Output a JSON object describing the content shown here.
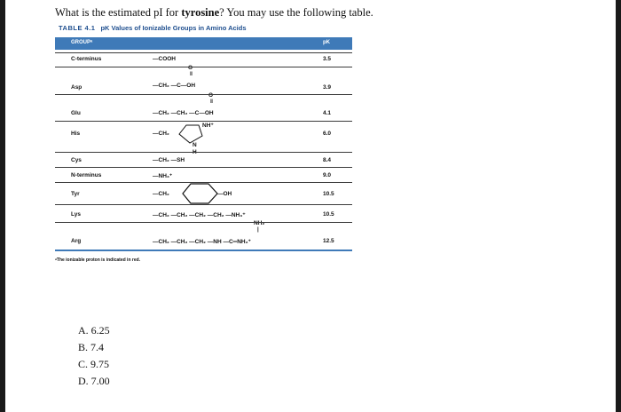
{
  "question": {
    "prefix": "What is the estimated pI for ",
    "bold": "tyrosine",
    "suffix": "? You may use the following table."
  },
  "table": {
    "number": "TABLE 4.1",
    "caption": "pK Values of Ionizable Groups in Amino Acids",
    "header_group": "GROUPᵃ",
    "header_pk": "pK",
    "rows": [
      {
        "name": "C-terminus",
        "pk": "3.5",
        "structure": "—COOH"
      },
      {
        "name": "Asp",
        "pk": "3.9",
        "structure": "—CH₂ —C—OH"
      },
      {
        "name": "Glu",
        "pk": "4.1",
        "structure": "—CH₂ —CH₂ —C—OH"
      },
      {
        "name": "His",
        "pk": "6.0",
        "structure": "—CH₂"
      },
      {
        "name": "Cys",
        "pk": "8.4",
        "structure": "—CH₂ —SH"
      },
      {
        "name": "N-terminus",
        "pk": "9.0",
        "structure": "—NH₃⁺"
      },
      {
        "name": "Tyr",
        "pk": "10.5",
        "structure": "—CH₂"
      },
      {
        "name": "Lys",
        "pk": "10.5",
        "structure": "—CH₂ —CH₂ —CH₂ —CH₂ —NH₃⁺"
      },
      {
        "name": "Arg",
        "pk": "12.5",
        "structure": "—CH₂ —CH₂ —CH₂ —NH —C═NH₂⁺"
      }
    ],
    "labels": {
      "o": "O",
      "nh_plus": "NH⁺",
      "n": "N",
      "h": "H",
      "oh": "OH",
      "nh2": "NH₂"
    },
    "footnote": "ᵃThe ionizable proton is indicated in red."
  },
  "options": [
    "A. 6.25",
    "B. 7.4",
    "C. 9.75",
    "D. 7.00"
  ],
  "colors": {
    "table_blue": "#3f7ab8",
    "caption_blue": "#1f4f8f"
  }
}
